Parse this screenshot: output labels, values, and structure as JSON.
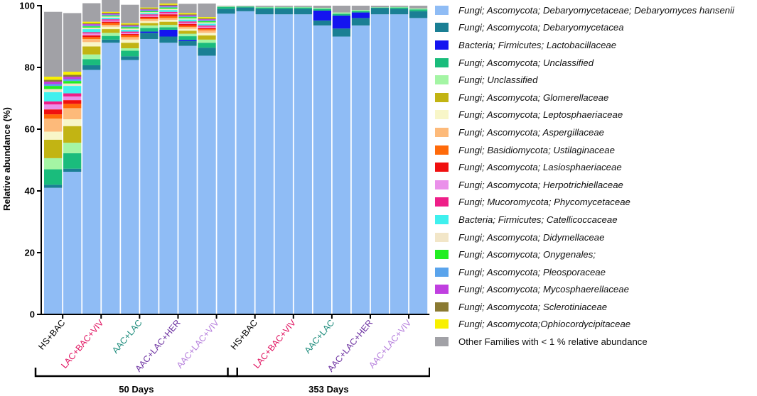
{
  "chart_data": {
    "type": "stacked-bar",
    "ylabel": "Relative abundance (%)",
    "ylim": [
      0,
      100
    ],
    "yticks": [
      0,
      20,
      40,
      60,
      80,
      100
    ],
    "categories": [
      "HS+BAC",
      "HS+BAC",
      "LAC+BAC+VIV",
      "LAC+BAC+VIV",
      "AAC+LAC",
      "AAC+LAC",
      "AAC+LAC+HER",
      "AAC+LAC+HER",
      "AAC+LAC+VIV",
      "AAC+LAC+VIV",
      "HS+BAC",
      "HS+BAC",
      "LAC+BAC+VIV",
      "LAC+BAC+VIV",
      "AAC+LAC",
      "AAC+LAC",
      "AAC+LAC+HER",
      "AAC+LAC+HER",
      "AAC+LAC+VIV",
      "AAC+LAC+VIV"
    ],
    "tick_labels": [
      {
        "text": "HS+BAC",
        "color": "#000000",
        "bars": [
          0,
          1
        ]
      },
      {
        "text": "LAC+BAC+VIV",
        "color": "#e0115f",
        "bars": [
          2,
          3
        ]
      },
      {
        "text": "AAC+LAC",
        "color": "#1a8a7a",
        "bars": [
          4,
          5
        ]
      },
      {
        "text": "AAC+LAC+HER",
        "color": "#6b2fa0",
        "bars": [
          6,
          7
        ]
      },
      {
        "text": "AAC+LAC+VIV",
        "color": "#b57edc",
        "bars": [
          8,
          9
        ]
      },
      {
        "text": "HS+BAC",
        "color": "#000000",
        "bars": [
          10,
          11
        ]
      },
      {
        "text": "LAC+BAC+VIV",
        "color": "#e0115f",
        "bars": [
          12,
          13
        ]
      },
      {
        "text": "AAC+LAC",
        "color": "#1a8a7a",
        "bars": [
          14,
          15
        ]
      },
      {
        "text": "AAC+LAC+HER",
        "color": "#6b2fa0",
        "bars": [
          16,
          17
        ]
      },
      {
        "text": "AAC+LAC+VIV",
        "color": "#b57edc",
        "bars": [
          18,
          19
        ]
      }
    ],
    "groups": [
      {
        "label": "50 Days",
        "bars": [
          0,
          9
        ]
      },
      {
        "label": "353 Days",
        "bars": [
          10,
          19
        ]
      }
    ],
    "series": [
      {
        "name": "Fungi; Ascomycota; Debaryomycetaceae; Debaryomyces hansenii",
        "color": "#8fbcf5",
        "values": [
          41,
          46.2,
          79.2,
          88,
          82.4,
          89.2,
          88,
          87,
          83.8,
          97.4,
          98.2,
          97.2,
          97.2,
          97.2,
          93.6,
          90,
          93.6,
          97.2,
          97.2,
          96
        ]
      },
      {
        "name": "Fungi; Ascomycota; Debaryomycetacea",
        "color": "#1a7f94",
        "values": [
          1,
          1,
          1.5,
          1,
          1.2,
          2,
          2,
          1.5,
          2.6,
          1.6,
          1.2,
          1.8,
          1.8,
          1.8,
          1.6,
          2.6,
          2.4,
          2,
          1.8,
          2.2
        ]
      },
      {
        "name": "Bacteria; Firmicutes; Lactobacillaceae",
        "color": "#1414f0",
        "values": [
          0,
          0,
          0,
          0,
          0,
          0.4,
          2.2,
          0.4,
          0,
          0,
          0,
          0,
          0,
          0,
          3.2,
          4.2,
          1.8,
          0,
          0,
          0
        ]
      },
      {
        "name": "Fungi; Ascomycota; Unclassified",
        "color": "#1abc7c",
        "values": [
          5,
          5,
          2,
          1.2,
          1.8,
          1.2,
          0.8,
          1.2,
          1.6,
          0.6,
          0.3,
          0.4,
          0.4,
          0.4,
          0.6,
          0.6,
          0.5,
          0.2,
          0.4,
          0.6
        ]
      },
      {
        "name": "Fungi; Unclassified",
        "color": "#a4f5a4",
        "values": [
          3.6,
          3.4,
          1.5,
          1,
          0.8,
          0.8,
          0.8,
          0.8,
          1,
          0.2,
          0.1,
          0.2,
          0.2,
          0.2,
          0.3,
          0.4,
          0.3,
          0.1,
          0.2,
          0.3
        ]
      },
      {
        "name": "Fungi; Ascomycota; Glomerellaceae",
        "color": "#c2b413",
        "values": [
          6,
          5.4,
          2.6,
          1.2,
          1.8,
          0.8,
          1,
          1,
          1.4,
          0,
          0,
          0,
          0,
          0,
          0,
          0,
          0,
          0,
          0,
          0
        ]
      },
      {
        "name": "Fungi; Ascomycota; Leptosphaeriaceae",
        "color": "#f8f6c8",
        "values": [
          2.6,
          2.2,
          1.4,
          0.8,
          1,
          0.6,
          0.6,
          0.6,
          0.8,
          0,
          0,
          0,
          0,
          0,
          0,
          0,
          0,
          0,
          0,
          0
        ]
      },
      {
        "name": "Fungi; Ascomycota; Aspergillaceae",
        "color": "#fdba7a",
        "values": [
          4.2,
          3.6,
          1,
          0.6,
          0.8,
          0.6,
          0.6,
          0.6,
          0.8,
          0,
          0,
          0,
          0,
          0,
          0,
          0,
          0,
          0,
          0,
          0
        ]
      },
      {
        "name": "Fungi; Basidiomycota; Ustilaginaceae",
        "color": "#ff6a0a",
        "values": [
          1.4,
          1.4,
          0.6,
          0.6,
          0.6,
          0.4,
          0.6,
          0.4,
          0.4,
          0,
          0,
          0,
          0,
          0,
          0,
          0,
          0,
          0,
          0,
          0
        ]
      },
      {
        "name": "Fungi; Ascomycota; Lasiosphaeriaceae",
        "color": "#f01010",
        "values": [
          1.6,
          1.2,
          0.6,
          0.4,
          0.4,
          0.4,
          0.6,
          0.6,
          0.4,
          0,
          0,
          0,
          0,
          0,
          0,
          0,
          0,
          0,
          0,
          0
        ]
      },
      {
        "name": "Fungi; Ascomycota; Herpotrichiellaceae",
        "color": "#ea90ea",
        "values": [
          1.6,
          1.2,
          0.6,
          0.4,
          0.4,
          0.4,
          0.4,
          0.4,
          0.4,
          0,
          0,
          0,
          0,
          0,
          0,
          0,
          0,
          0,
          0,
          0
        ]
      },
      {
        "name": "Fungi; Mucoromycota; Phycomycetaceae",
        "color": "#ee1e88",
        "values": [
          1,
          1,
          0.4,
          0.4,
          0.4,
          0.4,
          0.4,
          0.4,
          0.4,
          0,
          0,
          0,
          0,
          0,
          0,
          0,
          0,
          0,
          0,
          0
        ]
      },
      {
        "name": "Bacteria; Firmicutes; Catellicoccaceae",
        "color": "#3ff0ee",
        "values": [
          3,
          2.4,
          1,
          0.5,
          0.6,
          0.4,
          0.6,
          0.6,
          0.6,
          0,
          0,
          0,
          0,
          0,
          0,
          0,
          0,
          0,
          0,
          0
        ]
      },
      {
        "name": "Fungi; Ascomycota; Didymellaceae",
        "color": "#f2e6c8",
        "values": [
          1,
          0.8,
          0.5,
          0.4,
          0.4,
          0.3,
          0.4,
          0.4,
          0.4,
          0,
          0,
          0,
          0,
          0,
          0,
          0,
          0,
          0,
          0,
          0
        ]
      },
      {
        "name": "Fungi; Ascomycota; Onygenales;",
        "color": "#22ee22",
        "values": [
          1,
          0.8,
          0.4,
          0.3,
          0.4,
          0.3,
          0.4,
          0.4,
          0.4,
          0,
          0,
          0,
          0,
          0,
          0,
          0,
          0,
          0,
          0,
          0
        ]
      },
      {
        "name": "Fungi; Ascomycota; Pleosporaceae",
        "color": "#5aa4ec",
        "values": [
          0.6,
          0.6,
          0.3,
          0.3,
          0.3,
          0.3,
          0.3,
          0.3,
          0.3,
          0,
          0,
          0,
          0,
          0,
          0,
          0,
          0,
          0,
          0,
          0
        ]
      },
      {
        "name": "Fungi; Ascomycota; Mycosphaerellaceae",
        "color": "#c03fe0",
        "values": [
          0.8,
          0.8,
          0.4,
          0.3,
          0.3,
          0.3,
          0.3,
          0.3,
          0.3,
          0,
          0,
          0,
          0,
          0,
          0,
          0,
          0,
          0,
          0,
          0
        ]
      },
      {
        "name": "Fungi; Ascomycota; Sclerotiniaceae",
        "color": "#8a7a32",
        "values": [
          0.6,
          0.6,
          0.3,
          0.3,
          0.3,
          0.3,
          0.3,
          0.3,
          0.3,
          0,
          0,
          0,
          0,
          0,
          0,
          0,
          0,
          0,
          0,
          0
        ]
      },
      {
        "name": "Fungi; Ascomycota;Ophiocordycipitaceae",
        "color": "#f8f000",
        "values": [
          1,
          1,
          0.5,
          0.3,
          0.4,
          0.3,
          0.4,
          0.4,
          0.4,
          0,
          0,
          0,
          0,
          0,
          0,
          0,
          0,
          0,
          0,
          0
        ]
      },
      {
        "name": "Other Families with < 1 % relative abundance",
        "color": "#a1a1a6",
        "values": [
          21,
          19,
          6,
          4,
          6,
          3,
          2.2,
          3,
          4.4,
          0.2,
          0.2,
          0.4,
          0.4,
          0.4,
          0.7,
          2.2,
          1.4,
          0.5,
          0.4,
          0.9
        ]
      }
    ]
  },
  "legend": {
    "items": [
      {
        "label": "Fungi; Ascomycota; Debaryomycetaceae; Debaryomyces hansenii",
        "color": "#8fbcf5"
      },
      {
        "label": "Fungi; Ascomycota; Debaryomycetacea",
        "color": "#1a7f94"
      },
      {
        "label": "Bacteria; Firmicutes; Lactobacillaceae",
        "color": "#1414f0"
      },
      {
        "label": "Fungi; Ascomycota; Unclassified",
        "color": "#1abc7c"
      },
      {
        "label": "Fungi; Unclassified",
        "color": "#a4f5a4"
      },
      {
        "label": "Fungi; Ascomycota; Glomerellaceae",
        "color": "#c2b413"
      },
      {
        "label": "Fungi; Ascomycota; Leptosphaeriaceae",
        "color": "#f8f6c8"
      },
      {
        "label": "Fungi; Ascomycota; Aspergillaceae",
        "color": "#fdba7a"
      },
      {
        "label": "Fungi; Basidiomycota; Ustilaginaceae",
        "color": "#ff6a0a"
      },
      {
        "label": "Fungi; Ascomycota; Lasiosphaeriaceae",
        "color": "#f01010"
      },
      {
        "label": "Fungi; Ascomycota; Herpotrichiellaceae",
        "color": "#ea90ea"
      },
      {
        "label": "Fungi; Mucoromycota; Phycomycetaceae",
        "color": "#ee1e88"
      },
      {
        "label": "Bacteria; Firmicutes; Catellicoccaceae",
        "color": "#3ff0ee"
      },
      {
        "label": "Fungi; Ascomycota; Didymellaceae",
        "color": "#f2e6c8"
      },
      {
        "label": "Fungi; Ascomycota; Onygenales;",
        "color": "#22ee22"
      },
      {
        "label": "Fungi; Ascomycota; Pleosporaceae",
        "color": "#5aa4ec"
      },
      {
        "label": "Fungi; Ascomycota; Mycosphaerellaceae",
        "color": "#c03fe0"
      },
      {
        "label": "Fungi; Ascomycota; Sclerotiniaceae",
        "color": "#8a7a32"
      },
      {
        "label": "Fungi; Ascomycota;Ophiocordycipitaceae",
        "color": "#f8f000"
      },
      {
        "label": "Other Families with < 1 % relative abundance",
        "color": "#a1a1a6",
        "italic": false
      }
    ]
  }
}
